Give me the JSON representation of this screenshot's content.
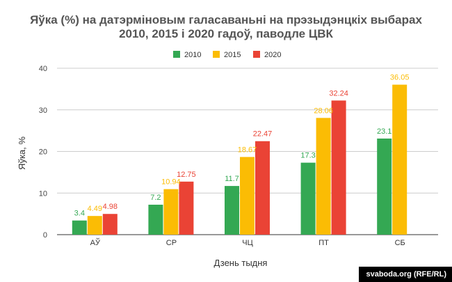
{
  "chart_data": {
    "type": "bar",
    "title_line1": "Яўка (%) на датэрміновым галасаваньні на прэзыдэнцкіх выбарах",
    "title_line2": "2010, 2015 і 2020 гадоў, паводле ЦВК",
    "xlabel": "Дзень тыдня",
    "ylabel": "Яўка, %",
    "ylim": [
      0,
      40
    ],
    "yticks": [
      0,
      10,
      20,
      30,
      40
    ],
    "categories": [
      "АЎ",
      "СР",
      "ЧЦ",
      "ПТ",
      "СБ"
    ],
    "series": [
      {
        "name": "2010",
        "color": "#34a853",
        "values": [
          3.4,
          7.2,
          11.7,
          17.3,
          23.1
        ],
        "labels": [
          "3.4",
          "7.2",
          "11.7",
          "17.3",
          "23.1"
        ]
      },
      {
        "name": "2015",
        "color": "#fbbc04",
        "values": [
          4.49,
          10.94,
          18.67,
          28.06,
          36.05
        ],
        "labels": [
          "4.49",
          "10.94",
          "18.67",
          "28.06",
          "36.05"
        ]
      },
      {
        "name": "2020",
        "color": "#ea4335",
        "values": [
          4.98,
          12.75,
          22.47,
          32.24,
          null
        ],
        "labels": [
          "4.98",
          "12.75",
          "22.47",
          "32.24",
          ""
        ]
      }
    ],
    "legend_position": "top",
    "grid": true
  },
  "credit": "svaboda.org (RFE/RL)"
}
